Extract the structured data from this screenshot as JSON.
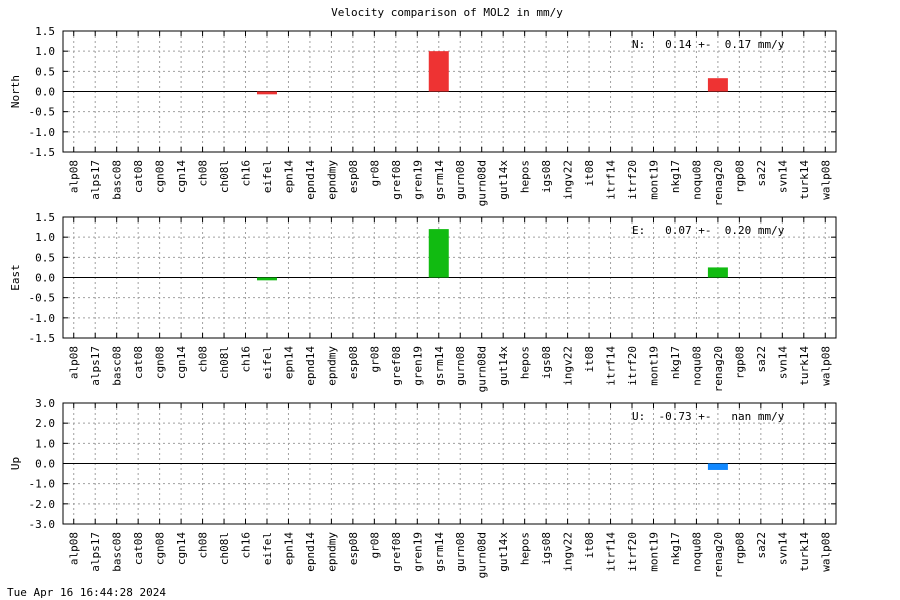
{
  "title": "Velocity comparison of MOL2 in mm/y",
  "footer": "Tue Apr 16 16:44:28 2024",
  "colors": {
    "north": "#ee3333",
    "east": "#11bb11",
    "up": "#1188ff"
  },
  "chart_data": {
    "type": "bar",
    "title": "Velocity comparison of MOL2 in mm/y",
    "categories": [
      "alp08",
      "alps17",
      "basc08",
      "cat08",
      "cgn08",
      "cgn14",
      "ch08",
      "ch08l",
      "ch16",
      "eifel",
      "epn14",
      "epnd14",
      "epndmy",
      "esp08",
      "gr08",
      "gref08",
      "gren19",
      "gsrm14",
      "gurn08",
      "gurn08d",
      "gut14x",
      "hepos",
      "igs08",
      "ingv22",
      "it08",
      "itrf14",
      "itrf20",
      "mont19",
      "nkg17",
      "noqu08",
      "renag20",
      "rgp08",
      "sa22",
      "svn14",
      "turk14",
      "walp08"
    ],
    "panels": [
      {
        "ylabel": "North",
        "ylim": [
          -1.5,
          1.5
        ],
        "yticks": [
          "1.5",
          "1.0",
          "0.5",
          "0.0",
          "-0.5",
          "-1.0",
          "-1.5"
        ],
        "annotation": "N:   0.14 +-  0.17 mm/y",
        "color": "#ee3333",
        "values": [
          null,
          null,
          null,
          null,
          null,
          null,
          null,
          null,
          null,
          -0.07,
          null,
          null,
          null,
          null,
          null,
          null,
          null,
          1.0,
          null,
          null,
          null,
          null,
          null,
          null,
          null,
          null,
          null,
          null,
          null,
          null,
          0.33,
          null,
          null,
          null,
          null,
          null
        ]
      },
      {
        "ylabel": "East",
        "ylim": [
          -1.5,
          1.5
        ],
        "yticks": [
          "1.5",
          "1.0",
          "0.5",
          "0.0",
          "-0.5",
          "-1.0",
          "-1.5"
        ],
        "annotation": "E:   0.07 +-  0.20 mm/y",
        "color": "#11bb11",
        "values": [
          null,
          null,
          null,
          null,
          null,
          null,
          null,
          null,
          null,
          -0.07,
          null,
          null,
          null,
          null,
          null,
          null,
          null,
          1.2,
          null,
          null,
          null,
          null,
          null,
          null,
          null,
          null,
          null,
          null,
          null,
          null,
          0.25,
          null,
          null,
          null,
          null,
          null
        ]
      },
      {
        "ylabel": "Up",
        "ylim": [
          -3.0,
          3.0
        ],
        "yticks": [
          "3.0",
          "2.0",
          "1.0",
          "0.0",
          "-1.0",
          "-2.0",
          "-3.0"
        ],
        "annotation": "U:  -0.73 +-   nan mm/y",
        "color": "#1188ff",
        "values": [
          null,
          null,
          null,
          null,
          null,
          null,
          null,
          null,
          null,
          null,
          null,
          null,
          null,
          null,
          null,
          null,
          null,
          null,
          null,
          null,
          null,
          null,
          null,
          null,
          null,
          null,
          null,
          null,
          null,
          null,
          -0.32,
          null,
          null,
          null,
          null,
          null
        ]
      }
    ],
    "grid": true
  }
}
